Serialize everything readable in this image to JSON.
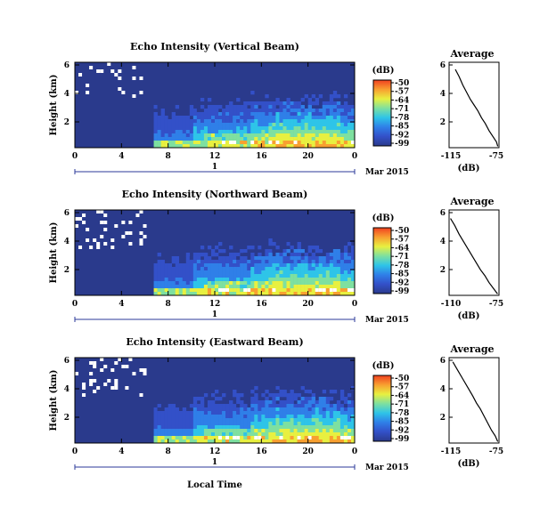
{
  "figure": {
    "xlabel": "Local Time",
    "date_label": "Mar 2015",
    "day_label": "1",
    "colorbar_unit": "(dB)",
    "colorbar_ticks": [
      "-50",
      "-57",
      "-64",
      "-71",
      "-78",
      "-85",
      "-92",
      "-99"
    ],
    "avg_xlabel": "(dB)"
  },
  "chart_data": [
    {
      "type": "heatmap",
      "title": "Echo Intensity (Vertical Beam)",
      "ylabel": "Height (km)",
      "x_ticks": [
        "0",
        "4",
        "8",
        "12",
        "16",
        "20",
        "0"
      ],
      "y_ticks": [
        "6",
        "4",
        "2"
      ],
      "xlim": [
        0,
        24
      ],
      "ylim": [
        0,
        6
      ],
      "colorbar_range": [
        -99,
        -50
      ],
      "average": {
        "title": "Average",
        "x_ticks": [
          "-115",
          "-75"
        ],
        "y_ticks": [
          "6",
          "4",
          "2"
        ],
        "xlim": [
          -115,
          -75
        ],
        "ylim": [
          0,
          6
        ],
        "x": [
          -110,
          -107,
          -104,
          -101,
          -98,
          -95,
          -92,
          -89,
          -86,
          -83,
          -80,
          -77,
          -76
        ],
        "y": [
          5.5,
          5.0,
          4.4,
          3.9,
          3.4,
          3.0,
          2.6,
          2.1,
          1.7,
          1.2,
          0.8,
          0.4,
          0.1
        ]
      }
    },
    {
      "type": "heatmap",
      "title": "Echo Intensity (Northward Beam)",
      "ylabel": "Height (km)",
      "x_ticks": [
        "0",
        "4",
        "8",
        "12",
        "16",
        "20",
        "0"
      ],
      "y_ticks": [
        "6",
        "4",
        "2"
      ],
      "xlim": [
        0,
        24
      ],
      "ylim": [
        0,
        6
      ],
      "colorbar_range": [
        -99,
        -50
      ],
      "average": {
        "title": "Average",
        "x_ticks": [
          "-110",
          "-75"
        ],
        "y_ticks": [
          "6",
          "4",
          "2"
        ],
        "xlim": [
          -110,
          -75
        ],
        "ylim": [
          0,
          6
        ],
        "x": [
          -109,
          -106,
          -103,
          -100,
          -97,
          -94,
          -91,
          -88,
          -85,
          -82,
          -79,
          -76
        ],
        "y": [
          5.4,
          4.9,
          4.3,
          3.8,
          3.3,
          2.8,
          2.3,
          1.8,
          1.4,
          0.9,
          0.5,
          0.1
        ]
      }
    },
    {
      "type": "heatmap",
      "title": "Echo Intensity (Eastward Beam)",
      "ylabel": "Height (km)",
      "x_ticks": [
        "0",
        "4",
        "8",
        "12",
        "16",
        "20",
        "0"
      ],
      "y_ticks": [
        "6",
        "4",
        "2"
      ],
      "xlim": [
        0,
        24
      ],
      "ylim": [
        0,
        6
      ],
      "colorbar_range": [
        -99,
        -50
      ],
      "average": {
        "title": "Average",
        "x_ticks": [
          "-115",
          "-75"
        ],
        "y_ticks": [
          "6",
          "4",
          "2"
        ],
        "xlim": [
          -115,
          -75
        ],
        "ylim": [
          0,
          6
        ],
        "x": [
          -112,
          -108,
          -104,
          -100,
          -96,
          -93,
          -90,
          -87,
          -84,
          -81,
          -78,
          -76
        ],
        "y": [
          5.7,
          5.1,
          4.5,
          3.9,
          3.3,
          2.8,
          2.4,
          1.9,
          1.4,
          0.9,
          0.5,
          0.1
        ]
      }
    }
  ],
  "colors": {
    "background_field": "#2a3a8c",
    "colormap": [
      "#2a3a8c",
      "#3350c8",
      "#2f7fe8",
      "#2ec4e8",
      "#7ee0a0",
      "#e8f040",
      "#f8a030",
      "#f04020"
    ]
  }
}
